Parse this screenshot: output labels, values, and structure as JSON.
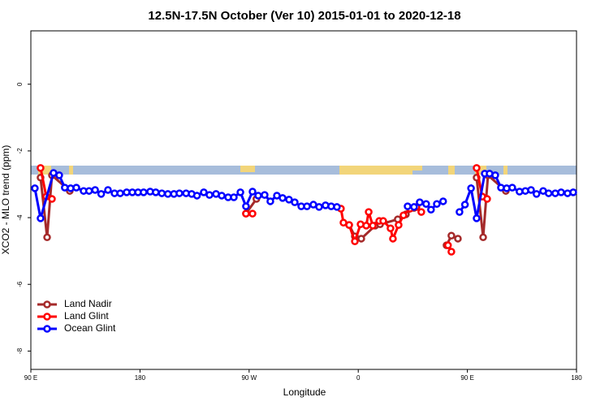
{
  "chart_data": {
    "type": "line",
    "title": "12.5N-17.5N October (Ver 10)   2015-01-01 to 2020-12-18",
    "x_label": "Longitude",
    "y_label": "XCO2 - MLO trend (ppm)",
    "xlim": [
      90,
      540
    ],
    "ylim": [
      -8.55,
      1.6
    ],
    "xticks": [
      {
        "value": 90,
        "label": "90 E"
      },
      180,
      {
        "value": 270,
        "label": "90 W"
      },
      {
        "value": 360,
        "label": "0"
      },
      {
        "value": 450,
        "label": "90 E"
      },
      {
        "value": 540,
        "label": "180"
      }
    ],
    "yticks": [
      0,
      -2,
      -4,
      -6,
      -8
    ],
    "legend": "bottom-left",
    "series": [
      {
        "name": "Land Nadir",
        "color": "#a52a2a",
        "x": [
          98,
          103.4,
          107.4,
          122.1,
          190,
          267.4,
          276,
          300,
          352.5,
          357.2,
          362.5,
          374,
          378,
          392.6,
          399.3,
          406,
          420,
          432.8,
          436.8,
          442.2,
          450,
          457.6,
          463,
          467,
          481.7
        ],
        "values": [
          -2.8,
          -4.59,
          -2.73,
          -3.2,
          null,
          -3.88,
          -3.44,
          null,
          -4.22,
          -4.56,
          -4.63,
          -4.24,
          -4.2,
          -4.05,
          -3.9,
          -3.71,
          null,
          -4.83,
          -4.54,
          -4.63,
          null,
          -2.8,
          -4.59,
          -2.73,
          -3.2
        ]
      },
      {
        "name": "Land Glint",
        "color": "#ff0000",
        "x": [
          98,
          102.7,
          107.4,
          190,
          267.4,
          272.8,
          300,
          345.7,
          347.8,
          352.5,
          357.2,
          361.9,
          366.6,
          368.6,
          372,
          377.3,
          380.6,
          386.6,
          388.6,
          393.3,
          397.3,
          402.7,
          408,
          412,
          420,
          434,
          436.8,
          450,
          457.6,
          462.3,
          466.3
        ],
        "values": [
          -2.51,
          -3.37,
          -3.44,
          null,
          -3.88,
          -3.88,
          null,
          -3.73,
          -4.15,
          -4.22,
          -4.71,
          -4.2,
          -4.24,
          -3.83,
          -4.24,
          -4.1,
          -4.1,
          -4.32,
          -4.63,
          -4.22,
          -3.93,
          -3.73,
          -3.68,
          -3.83,
          null,
          -4.83,
          -5.02,
          null,
          -2.51,
          -3.37,
          -3.44
        ]
      },
      {
        "name": "Ocean Glint",
        "color": "#0000ff",
        "x": [
          93.3,
          98,
          108.7,
          113.4,
          118,
          122.8,
          127.5,
          133.5,
          138,
          143,
          148,
          153.6,
          159,
          163.7,
          169,
          173.7,
          178.4,
          183,
          188.4,
          193,
          198,
          203,
          208,
          212.5,
          218,
          222.6,
          227,
          232.6,
          237.3,
          242.7,
          247.4,
          252.7,
          257.4,
          262.8,
          267.4,
          272.8,
          277.5,
          282.8,
          287.5,
          292.9,
          297.6,
          302.9,
          307.6,
          313,
          317.7,
          323,
          327.7,
          333,
          337.7,
          342.4,
          370,
          400.7,
          406,
          410.7,
          416,
          420,
          424.8,
          430,
          437,
          443.5,
          448,
          453,
          457.6,
          464.3,
          468.3,
          473,
          477.7,
          482.4,
          487,
          493,
          497.8,
          502.5,
          507,
          512.5,
          517,
          522.5,
          527.3,
          532.6,
          537.3
        ],
        "values": [
          -3.12,
          -4.02,
          -2.66,
          -2.73,
          -3.1,
          -3.12,
          -3.1,
          -3.2,
          -3.2,
          -3.17,
          -3.29,
          -3.17,
          -3.27,
          -3.27,
          -3.24,
          -3.24,
          -3.24,
          -3.24,
          -3.22,
          -3.24,
          -3.27,
          -3.29,
          -3.29,
          -3.27,
          -3.27,
          -3.29,
          -3.34,
          -3.24,
          -3.32,
          -3.29,
          -3.34,
          -3.39,
          -3.39,
          -3.24,
          -3.66,
          -3.22,
          -3.34,
          -3.32,
          -3.51,
          -3.34,
          -3.41,
          -3.46,
          -3.54,
          -3.66,
          -3.66,
          -3.61,
          -3.68,
          -3.63,
          -3.66,
          -3.68,
          null,
          -3.66,
          -3.68,
          -3.54,
          -3.59,
          -3.76,
          -3.59,
          -3.51,
          null,
          -3.83,
          -3.61,
          -3.12,
          -4.02,
          -2.68,
          -2.68,
          -2.73,
          -3.1,
          -3.12,
          -3.1,
          -3.22,
          -3.2,
          -3.17,
          -3.29,
          -3.2,
          -3.27,
          -3.27,
          -3.24,
          -3.27,
          -3.24
        ]
      }
    ]
  }
}
